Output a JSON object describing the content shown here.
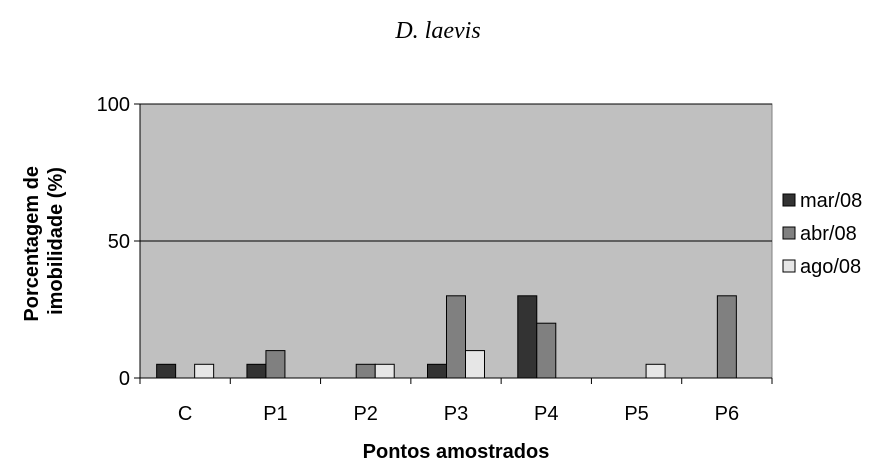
{
  "chart_data": {
    "type": "bar",
    "title": "D. laevis",
    "xlabel": "Pontos amostrados",
    "ylabel_lines": [
      "Porcentagem de",
      "imobilidade (%)"
    ],
    "categories": [
      "C",
      "P1",
      "P2",
      "P3",
      "P4",
      "P5",
      "P6"
    ],
    "series": [
      {
        "name": "mar/08",
        "values": [
          5,
          5,
          0,
          5,
          30,
          0,
          0
        ]
      },
      {
        "name": "abr/08",
        "values": [
          0,
          10,
          5,
          30,
          20,
          0,
          30
        ]
      },
      {
        "name": "ago/08",
        "values": [
          5,
          0,
          5,
          10,
          0,
          5,
          0
        ]
      }
    ],
    "ylim": [
      0,
      100
    ],
    "yticks": [
      "0",
      "50",
      "100"
    ],
    "grid": "horizontal at 50 and 100",
    "legend_position": "right",
    "colors": {
      "plot_background": "#c0c0c0",
      "series": [
        "#333333",
        "#808080",
        "#e6e6e6"
      ],
      "gridline": "#000000"
    }
  }
}
